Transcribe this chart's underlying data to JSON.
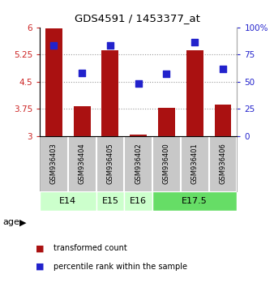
{
  "title": "GDS4591 / 1453377_at",
  "samples": [
    "GSM936403",
    "GSM936404",
    "GSM936405",
    "GSM936402",
    "GSM936400",
    "GSM936401",
    "GSM936406"
  ],
  "red_values": [
    5.98,
    3.82,
    5.37,
    3.04,
    3.77,
    5.37,
    3.87
  ],
  "blue_values": [
    83,
    58,
    83,
    48,
    57,
    86,
    62
  ],
  "age_groups": [
    {
      "label": "E14",
      "start": 0,
      "end": 1,
      "color": "#ccffcc"
    },
    {
      "label": "E15",
      "start": 2,
      "end": 2,
      "color": "#ccffcc"
    },
    {
      "label": "E16",
      "start": 3,
      "end": 3,
      "color": "#ccffcc"
    },
    {
      "label": "E17.5",
      "start": 4,
      "end": 6,
      "color": "#66dd66"
    }
  ],
  "ylim_left": [
    3.0,
    6.0
  ],
  "ylim_right": [
    0,
    100
  ],
  "yticks_left": [
    3.0,
    3.75,
    4.5,
    5.25,
    6.0
  ],
  "yticks_left_labels": [
    "3",
    "3.75",
    "4.5",
    "5.25",
    "6"
  ],
  "yticks_right": [
    0,
    25,
    50,
    75,
    100
  ],
  "yticks_right_labels": [
    "0",
    "25",
    "50",
    "75",
    "100%"
  ],
  "bar_color": "#aa1111",
  "dot_color": "#2222cc",
  "bar_width": 0.6,
  "dot_size": 40,
  "legend_red": "transformed count",
  "legend_blue": "percentile rank within the sample",
  "sample_box_color": "#c8c8c8",
  "grid_color": "#888888"
}
